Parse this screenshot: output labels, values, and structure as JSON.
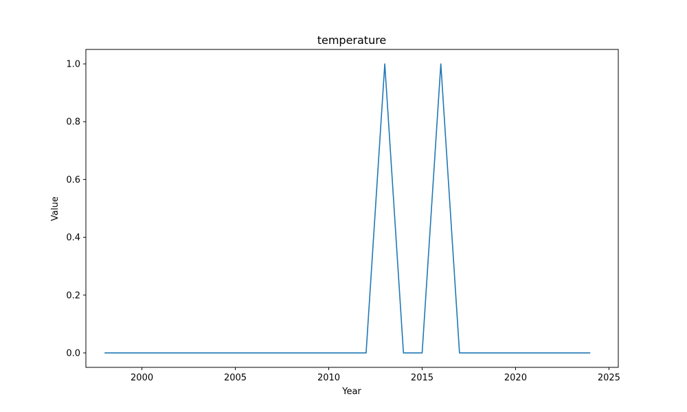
{
  "chart_data": {
    "type": "line",
    "title": "temperature",
    "xlabel": "Year",
    "ylabel": "Value",
    "xlim": [
      1997,
      2025.5
    ],
    "ylim": [
      -0.05,
      1.05
    ],
    "x_ticks": [
      2000,
      2005,
      2010,
      2015,
      2020,
      2025
    ],
    "x_tick_labels": [
      "2000",
      "2005",
      "2010",
      "2015",
      "2020",
      "2025"
    ],
    "y_ticks": [
      0.0,
      0.2,
      0.4,
      0.6,
      0.8,
      1.0
    ],
    "y_tick_labels": [
      "0.0",
      "0.2",
      "0.4",
      "0.6",
      "0.8",
      "1.0"
    ],
    "grid": false,
    "series": [
      {
        "color": "#1f77b4",
        "x": [
          1998,
          1999,
          2000,
          2001,
          2002,
          2003,
          2004,
          2005,
          2006,
          2007,
          2008,
          2009,
          2010,
          2011,
          2012,
          2013,
          2014,
          2015,
          2016,
          2017,
          2018,
          2019,
          2020,
          2021,
          2022,
          2023,
          2024
        ],
        "y": [
          0,
          0,
          0,
          0,
          0,
          0,
          0,
          0,
          0,
          0,
          0,
          0,
          0,
          0,
          0,
          1,
          0,
          0,
          1,
          0,
          0,
          0,
          0,
          0,
          0,
          0,
          0
        ]
      }
    ]
  }
}
